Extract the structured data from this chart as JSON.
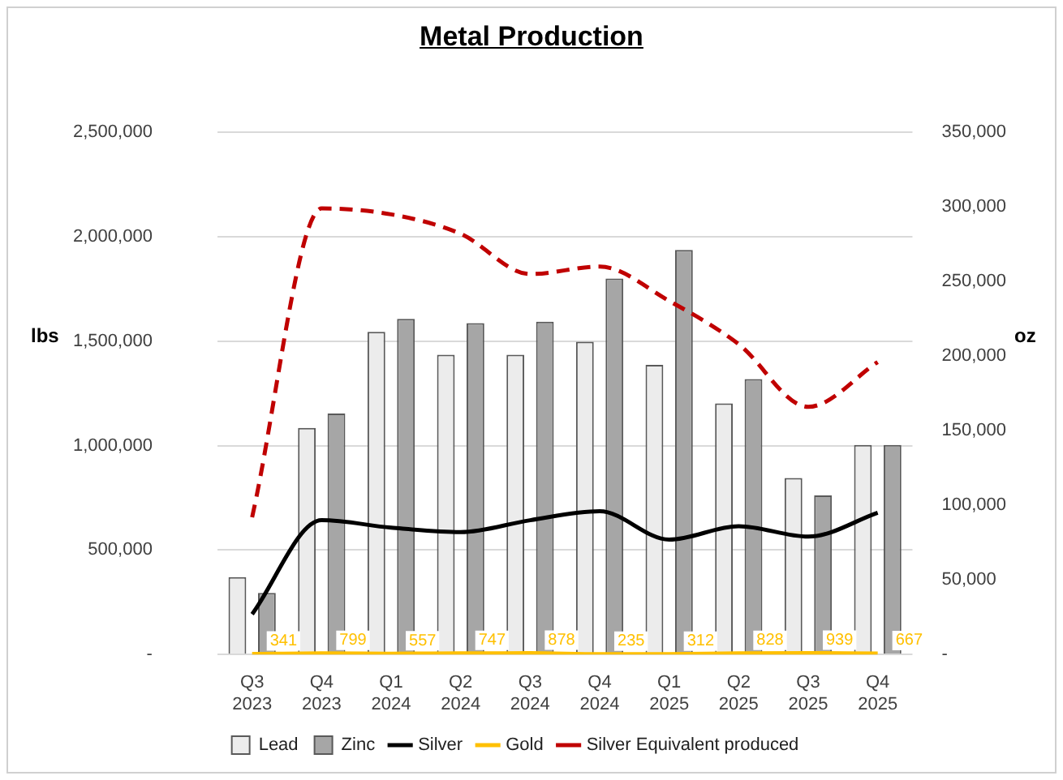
{
  "chart_data": {
    "type": "bar",
    "title": "Metal Production",
    "ylabel": "lbs",
    "y2label": "oz",
    "categories": [
      "Q3 2023",
      "Q4 2023",
      "Q1 2024",
      "Q2 2024",
      "Q3 2024",
      "Q4 2024",
      "Q1 2025",
      "Q2 2025",
      "Q3 2025",
      "Q4 2025"
    ],
    "series": [
      {
        "name": "Lead",
        "color": "#ececec",
        "values": [
          371000,
          1085000,
          1545000,
          1435000,
          1435000,
          1497000,
          1387000,
          1202000,
          845000,
          1003000
        ]
      },
      {
        "name": "Zinc",
        "color": "#a6a6a6",
        "values": [
          295000,
          1154000,
          1607000,
          1587000,
          1593000,
          1800000,
          1937000,
          1319000,
          762000,
          1003000
        ]
      },
      {
        "name": "Silver",
        "type": "line",
        "axis": "y2",
        "color": "#000000",
        "line_style": "solid",
        "values": [
          27000,
          90000,
          85000,
          82000,
          90000,
          96000,
          77000,
          86000,
          79000,
          95000
        ]
      },
      {
        "name": "Gold",
        "type": "line",
        "axis": "y2",
        "color": "#ffc000",
        "line_style": "solid",
        "values": [
          341,
          799,
          557,
          747,
          878,
          235,
          312,
          828,
          939,
          667
        ],
        "value_labels": [
          "341",
          "799",
          "557",
          "747",
          "878",
          "235",
          "312",
          "828",
          "939",
          "667"
        ]
      },
      {
        "name": "Silver Equivalent produced",
        "type": "line",
        "axis": "y2",
        "color": "#c00000",
        "line_style": "dashed",
        "values": [
          92000,
          299000,
          295000,
          282000,
          255000,
          260000,
          237000,
          208000,
          166000,
          196000
        ]
      }
    ],
    "ylim": [
      0,
      2500000
    ],
    "yticks": [
      {
        "value": 0,
        "label": "-"
      },
      {
        "value": 500000,
        "label": "500,000"
      },
      {
        "value": 1000000,
        "label": "1,000,000"
      },
      {
        "value": 1500000,
        "label": "1,500,000"
      },
      {
        "value": 2000000,
        "label": "2,000,000"
      },
      {
        "value": 2500000,
        "label": "2,500,000"
      }
    ],
    "y2lim": [
      0,
      350000
    ],
    "y2ticks": [
      {
        "value": 0,
        "label": "-"
      },
      {
        "value": 50000,
        "label": "50,000"
      },
      {
        "value": 100000,
        "label": "100,000"
      },
      {
        "value": 150000,
        "label": "150,000"
      },
      {
        "value": 200000,
        "label": "200,000"
      },
      {
        "value": 250000,
        "label": "250,000"
      },
      {
        "value": 300000,
        "label": "300,000"
      },
      {
        "value": 350000,
        "label": "350,000"
      }
    ],
    "grid": "y",
    "legend": "bottom",
    "marker": "none"
  }
}
